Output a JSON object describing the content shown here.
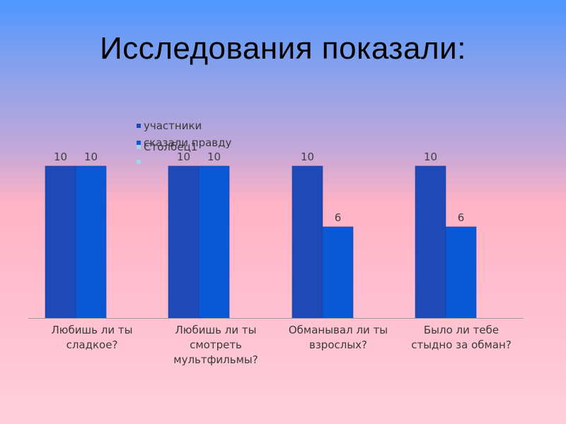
{
  "slide": {
    "title": "Исследования показали:"
  },
  "chart_data": {
    "type": "bar",
    "categories": [
      [
        "Любишь ли ты",
        "сладкое?"
      ],
      [
        "Любишь ли ты",
        "смотреть",
        "мультфильмы?"
      ],
      [
        "Обманывал ли ты",
        "взрослых?"
      ],
      [
        "Было ли тебе",
        "стыдно за обман?"
      ]
    ],
    "series": [
      {
        "name": "участники",
        "values": [
          10,
          10,
          10,
          10
        ],
        "color": "#1f49b6"
      },
      {
        "name": "сказали правду",
        "values": [
          10,
          10,
          6,
          6
        ],
        "color": "#0b58d6"
      },
      {
        "name": "Столбец1",
        "values": [
          null,
          null,
          null,
          null
        ],
        "color": "#9fd7e8"
      }
    ],
    "ylim": [
      0,
      10
    ],
    "grid": false,
    "legend_position": "top"
  }
}
